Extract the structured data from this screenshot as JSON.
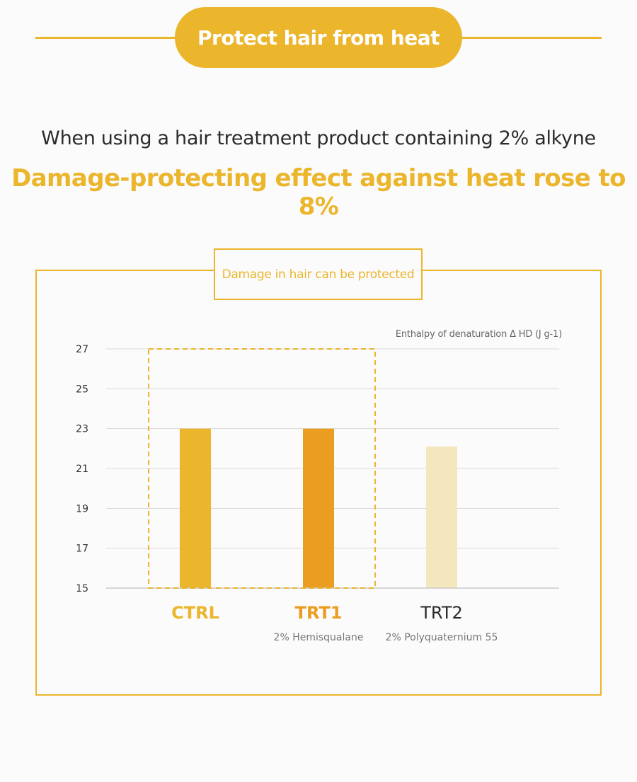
{
  "header": {
    "badge": "Protect hair from heat"
  },
  "intro": {
    "subtitle": "When using a hair treatment product containing 2% alkyne",
    "headline": "Damage-protecting effect against heat rose to 8%"
  },
  "panel": {
    "tag": "Damage in hair can be protected"
  },
  "colors": {
    "accent": "#ebb52c",
    "trt1": "#eb9d21",
    "trt2": "#f5e7bd"
  },
  "chart_data": {
    "type": "bar",
    "ylabel": "Enthalpy of denaturation Δ HD (J g-1)",
    "ylim": [
      15,
      27
    ],
    "yticks": [
      27,
      25,
      23,
      21,
      19,
      17,
      15
    ],
    "categories": [
      "CTRL",
      "TRT1",
      "TRT2"
    ],
    "category_sublabels": [
      "",
      "2% Hemisqualane",
      "2% Polyquaternium 55"
    ],
    "values": [
      23.0,
      23.0,
      22.1
    ],
    "highlight": "CTRL, TRT1",
    "grid": true
  }
}
